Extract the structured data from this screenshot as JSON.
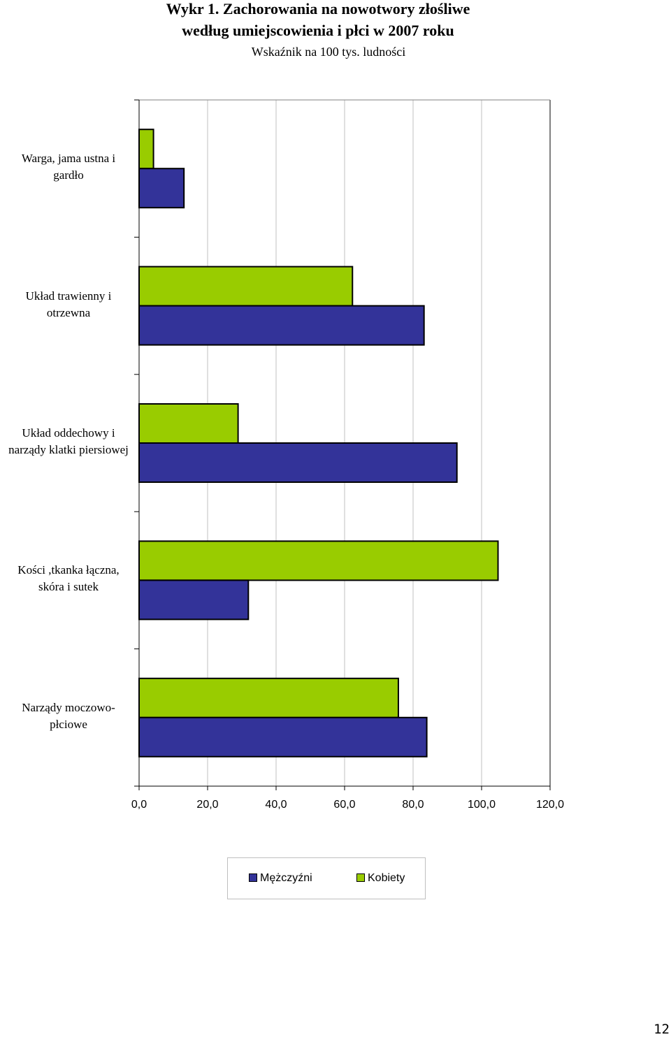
{
  "page": {
    "title_line1": "Wykr 1. Zachorowania na nowotwory złośliwe",
    "title_line2": "według umiejscowienia i płci w 2007 roku",
    "subtitle": "Wskaźnik na 100 tys. ludności",
    "page_number": "12"
  },
  "chart_data": {
    "type": "bar",
    "orientation": "horizontal",
    "title": "Wykr 1. Zachorowania na nowotwory złośliwe według umiejscowienia i płci w 2007 roku",
    "subtitle": "Wskaźnik na 100 tys. ludności",
    "categories": [
      "Warga, jama ustna i gardło",
      "Układ trawienny i otrzewna",
      "Układ oddechowy i narządy klatki piersiowej",
      "Kości ,tkanka łączna, skóra i sutek",
      "Narządy moczowo-płciowe"
    ],
    "category_lines": [
      [
        "Warga, jama ustna i",
        "gardło"
      ],
      [
        "Układ trawienny i",
        "otrzewna"
      ],
      [
        "Układ oddechowy i",
        "narządy klatki piersiowej"
      ],
      [
        "Kości ,tkanka łączna,",
        "skóra i sutek"
      ],
      [
        "Narządy moczowo-",
        "płciowe"
      ]
    ],
    "series": [
      {
        "name": "Mężczyźni",
        "color": "#333399",
        "values": [
          13.1,
          83.2,
          92.8,
          31.9,
          84.0
        ]
      },
      {
        "name": "Kobiety",
        "color": "#99cc00",
        "values": [
          4.2,
          62.3,
          28.9,
          104.8,
          75.7
        ]
      }
    ],
    "xlim": [
      0,
      120
    ],
    "xticks": [
      0,
      20,
      40,
      60,
      80,
      100,
      120
    ],
    "xtick_labels": [
      "0,0",
      "20,0",
      "40,0",
      "60,0",
      "80,0",
      "100,0",
      "120,0"
    ],
    "grid": true,
    "legend_position": "bottom"
  },
  "colors": {
    "men": "#333399",
    "women": "#99cc00",
    "gridline": "#c0c0c0",
    "axis": "#808080"
  }
}
